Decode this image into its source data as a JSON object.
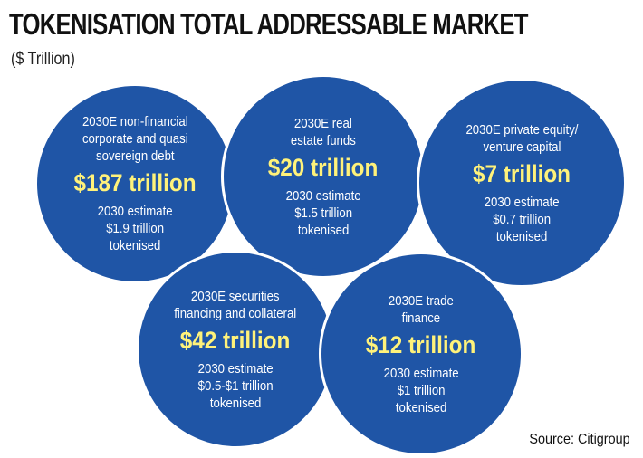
{
  "header": {
    "title": "TOKENISATION TOTAL ADDRESSABLE MARKET",
    "subtitle": "($ Trillion)"
  },
  "colors": {
    "circle": "#1f55a6",
    "value_text": "#fff27a",
    "text": "#ffffff"
  },
  "circles": [
    {
      "description": "2030E non-financial\ncorporate and quasi\nsovereign debt",
      "value": "$187 trillion",
      "estimate": "2030 estimate\n$1.9 trillion\ntokenised"
    },
    {
      "description": "2030E real\nestate funds",
      "value": "$20 trillion",
      "estimate": "2030 estimate\n$1.5 trillion\ntokenised"
    },
    {
      "description": "2030E private equity/\nventure capital",
      "value": "$7 trillion",
      "estimate": "2030 estimate\n$0.7 trillion\ntokenised"
    },
    {
      "description": "2030E securities\nfinancing and collateral",
      "value": "$42 trillion",
      "estimate": "2030 estimate\n$0.5-$1 trillion\ntokenised"
    },
    {
      "description": "2030E trade\nfinance",
      "value": "$12 trillion",
      "estimate": "2030 estimate\n$1 trillion\ntokenised"
    }
  ],
  "source": "Source: Citigroup"
}
